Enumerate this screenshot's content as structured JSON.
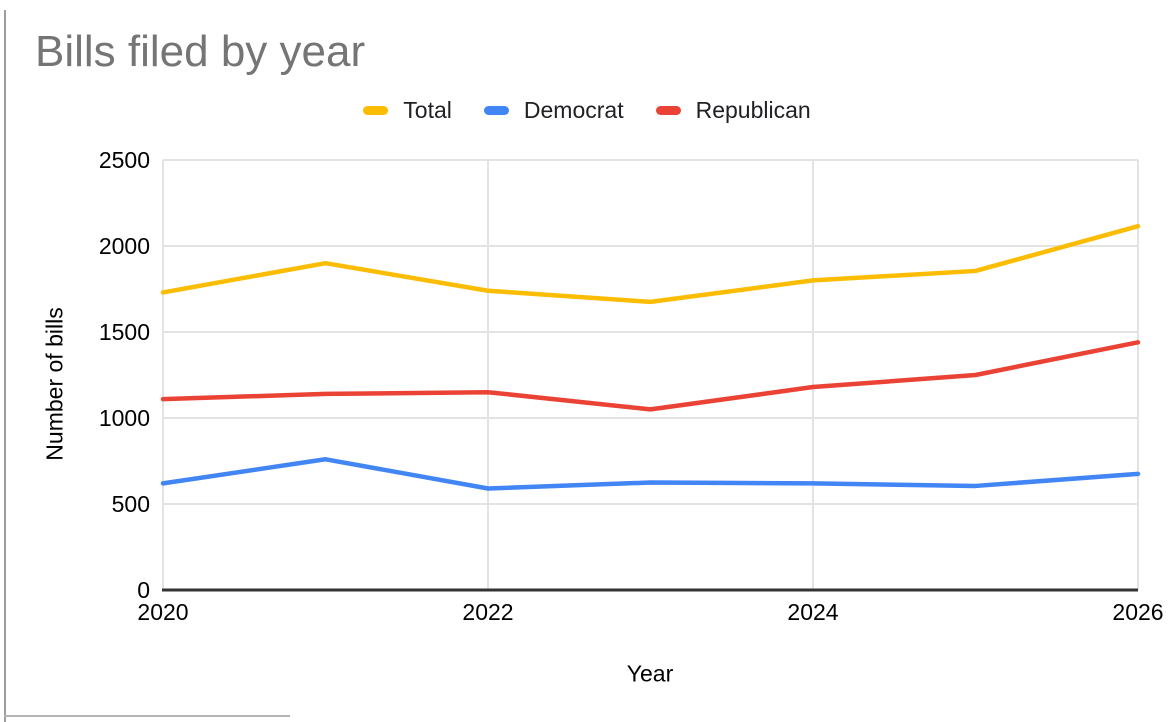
{
  "page": {
    "background": "#ffffff",
    "frame_left_color": "#9e9e9e",
    "frame_bottom_color": "#b5b5b5"
  },
  "chart_data": {
    "type": "line",
    "title": "Bills filed by year",
    "title_color": "#757575",
    "xlabel": "Year",
    "ylabel": "Number of bills",
    "categories": [
      2020,
      2021,
      2022,
      2023,
      2024,
      2025,
      2026
    ],
    "x_tick_labels": [
      "2020",
      "2022",
      "2024",
      "2026"
    ],
    "y_ticks": [
      0,
      500,
      1000,
      1500,
      2000,
      2500
    ],
    "ylim": [
      0,
      2500
    ],
    "xlim": [
      2020,
      2026
    ],
    "grid": true,
    "gridline_color": "#e3e3e3",
    "axis_color": "#333333",
    "legend_position": "top",
    "series": [
      {
        "name": "Total",
        "color": "#FBBC04",
        "values": [
          1730,
          1900,
          1740,
          1675,
          1800,
          1855,
          2115
        ]
      },
      {
        "name": "Democrat",
        "color": "#4285F4",
        "values": [
          620,
          760,
          590,
          625,
          620,
          605,
          675
        ]
      },
      {
        "name": "Republican",
        "color": "#EA4335",
        "values": [
          1110,
          1140,
          1150,
          1050,
          1180,
          1250,
          1440
        ]
      }
    ]
  }
}
